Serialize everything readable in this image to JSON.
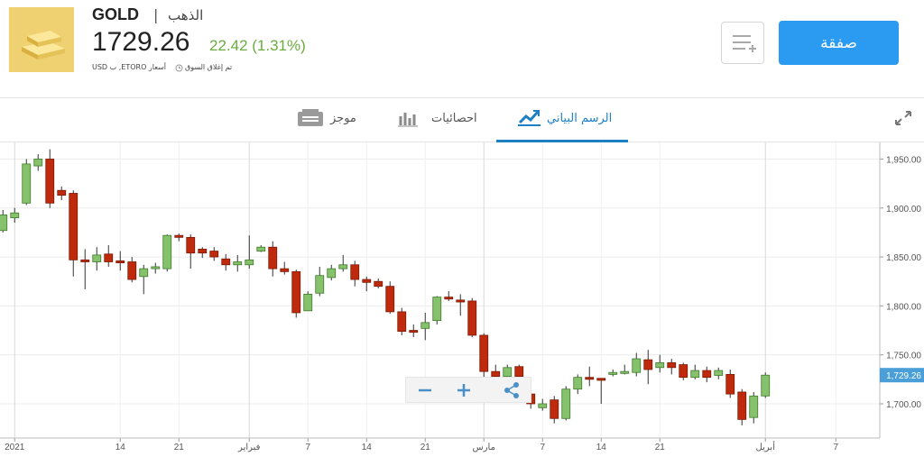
{
  "header": {
    "symbol": "GOLD",
    "separator": "|",
    "name": "الذهب",
    "price": "1729.26",
    "change": "22.42 (1.31%)",
    "market_status": "تم إغلاق السوق",
    "quote_info": "أسعار ETORO, ب USD"
  },
  "actions": {
    "trade_button": "صفقة"
  },
  "tabs": [
    "الرسم البياني",
    "احصائيات",
    "موجز"
  ],
  "chart_data": {
    "type": "candlestick",
    "open": [
      1877,
      1890,
      1905,
      1943,
      1950,
      1918,
      1915,
      1847,
      1845,
      1853,
      1846,
      1845,
      1830,
      1838,
      1838,
      1872,
      1870,
      1858,
      1856,
      1848,
      1842,
      1842,
      1856,
      1860,
      1838,
      1835,
      1795,
      1813,
      1829,
      1838,
      1842,
      1827,
      1825,
      1820,
      1794,
      1775,
      1777,
      1785,
      1809,
      1806,
      1805,
      1770,
      1733,
      1728,
      1738,
      1710,
      1696,
      1704,
      1685,
      1715,
      1727,
      1726,
      1730,
      1731,
      1732,
      1745,
      1737,
      1742,
      1740,
      1727,
      1734,
      1729,
      1730,
      1712,
      1686,
      1708
    ],
    "high": [
      1898,
      1900,
      1950,
      1955,
      1960,
      1922,
      1918,
      1858,
      1860,
      1862,
      1856,
      1850,
      1842,
      1844,
      1873,
      1874,
      1873,
      1860,
      1860,
      1853,
      1852,
      1872,
      1862,
      1866,
      1845,
      1837,
      1815,
      1840,
      1842,
      1852,
      1846,
      1830,
      1828,
      1825,
      1798,
      1781,
      1793,
      1810,
      1815,
      1812,
      1808,
      1772,
      1740,
      1740,
      1740,
      1715,
      1705,
      1708,
      1718,
      1730,
      1738,
      1726,
      1735,
      1740,
      1752,
      1755,
      1750,
      1746,
      1742,
      1740,
      1738,
      1737,
      1735,
      1715,
      1712,
      1732
    ],
    "low": [
      1875,
      1885,
      1903,
      1938,
      1900,
      1908,
      1830,
      1817,
      1836,
      1840,
      1836,
      1824,
      1812,
      1833,
      1835,
      1866,
      1838,
      1849,
      1846,
      1836,
      1835,
      1838,
      1855,
      1830,
      1832,
      1788,
      1795,
      1810,
      1826,
      1835,
      1820,
      1815,
      1818,
      1792,
      1770,
      1768,
      1765,
      1781,
      1805,
      1790,
      1768,
      1720,
      1724,
      1718,
      1710,
      1695,
      1693,
      1680,
      1683,
      1710,
      1718,
      1700,
      1728,
      1730,
      1728,
      1720,
      1732,
      1730,
      1724,
      1725,
      1722,
      1725,
      1706,
      1678,
      1680,
      1706
    ],
    "close": [
      1893,
      1895,
      1945,
      1950,
      1905,
      1913,
      1847,
      1845,
      1852,
      1845,
      1844,
      1827,
      1838,
      1840,
      1872,
      1870,
      1854,
      1854,
      1850,
      1842,
      1845,
      1847,
      1860,
      1838,
      1835,
      1793,
      1812,
      1831,
      1838,
      1842,
      1827,
      1824,
      1820,
      1794,
      1774,
      1773,
      1783,
      1809,
      1807,
      1804,
      1770,
      1733,
      1728,
      1737,
      1728,
      1700,
      1700,
      1685,
      1715,
      1727,
      1725,
      1724,
      1732,
      1733,
      1746,
      1735,
      1742,
      1737,
      1727,
      1734,
      1727,
      1734,
      1710,
      1684,
      1708,
      1729.26
    ],
    "up_color": "#86c16c",
    "down_color": "#c02a0c",
    "xlim": [
      -0.25,
      74.75
    ],
    "xticks": [
      {
        "value": 1,
        "label": "2021"
      },
      {
        "value": 10,
        "label": "14"
      },
      {
        "value": 15,
        "label": "21"
      },
      {
        "value": 21,
        "label": "فبراير"
      },
      {
        "value": 26,
        "label": "7"
      },
      {
        "value": 31,
        "label": "14"
      },
      {
        "value": 36,
        "label": "21"
      },
      {
        "value": 41,
        "label": "مارس"
      },
      {
        "value": 46,
        "label": "7"
      },
      {
        "value": 51,
        "label": "14"
      },
      {
        "value": 56,
        "label": "21"
      },
      {
        "value": 65,
        "label": "أبريل"
      },
      {
        "value": 71,
        "label": "7"
      }
    ],
    "ylim": [
      1665,
      1967
    ],
    "yticks": [
      {
        "value": 1700,
        "label": "1,700.00"
      },
      {
        "value": 1750,
        "label": "1,750.00"
      },
      {
        "value": 1800,
        "label": "1,800.00"
      },
      {
        "value": 1850,
        "label": "1,850.00"
      },
      {
        "value": 1900,
        "label": "1,900.00"
      },
      {
        "value": 1950,
        "label": "1,950.00"
      }
    ],
    "last_price": {
      "value": 1729.26,
      "label": "1,729.26"
    },
    "grid": true
  }
}
